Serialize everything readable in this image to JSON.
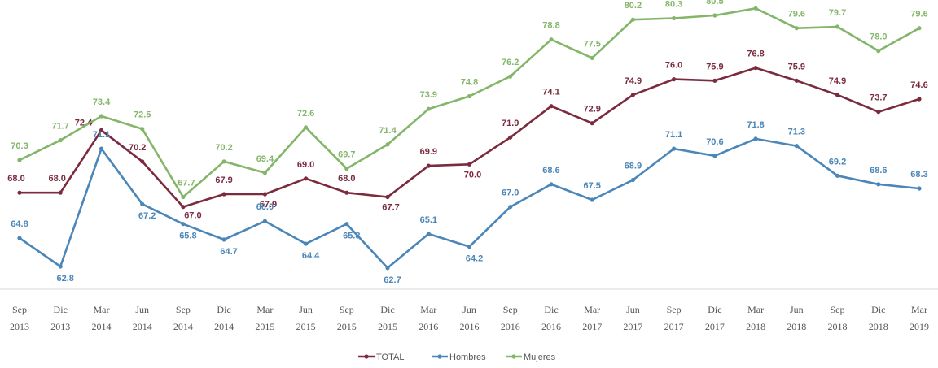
{
  "chart_data": {
    "type": "line",
    "x_months": [
      "Sep",
      "Dic",
      "Mar",
      "Jun",
      "Sep",
      "Dic",
      "Mar",
      "Jun",
      "Sep",
      "Dic",
      "Mar",
      "Jun",
      "Sep",
      "Dic",
      "Mar",
      "Jun",
      "Sep",
      "Dic",
      "Mar",
      "Jun",
      "Sep",
      "Dic",
      "Mar"
    ],
    "x_years": [
      "2013",
      "2013",
      "2014",
      "2014",
      "2014",
      "2014",
      "2015",
      "2015",
      "2015",
      "2015",
      "2016",
      "2016",
      "2016",
      "2016",
      "2017",
      "2017",
      "2017",
      "2017",
      "2018",
      "2018",
      "2018",
      "2018",
      "2019"
    ],
    "ylim": [
      60,
      82
    ],
    "grid": false,
    "legend_position": "bottom-center",
    "series": [
      {
        "name": "TOTAL",
        "color": "#7b2b3e",
        "values": [
          68.0,
          68.0,
          72.4,
          70.2,
          67.0,
          67.9,
          67.9,
          69.0,
          68.0,
          67.7,
          69.9,
          70.0,
          71.9,
          74.1,
          72.9,
          74.9,
          76.0,
          75.9,
          76.8,
          75.9,
          74.9,
          73.7,
          74.6
        ]
      },
      {
        "name": "Hombres",
        "color": "#4a86b8",
        "values": [
          64.8,
          62.8,
          71.1,
          67.2,
          65.8,
          64.7,
          66.0,
          64.4,
          65.8,
          62.7,
          65.1,
          64.2,
          67.0,
          68.6,
          67.5,
          68.9,
          71.1,
          70.6,
          71.8,
          71.3,
          69.2,
          68.6,
          68.3
        ]
      },
      {
        "name": "Mujeres",
        "color": "#84b66a",
        "values": [
          70.3,
          71.7,
          73.4,
          72.5,
          67.7,
          70.2,
          69.4,
          72.6,
          69.7,
          71.4,
          73.9,
          74.8,
          76.2,
          78.8,
          77.5,
          80.2,
          80.3,
          80.5,
          81.0,
          79.6,
          79.7,
          78.0,
          79.6
        ]
      }
    ]
  }
}
